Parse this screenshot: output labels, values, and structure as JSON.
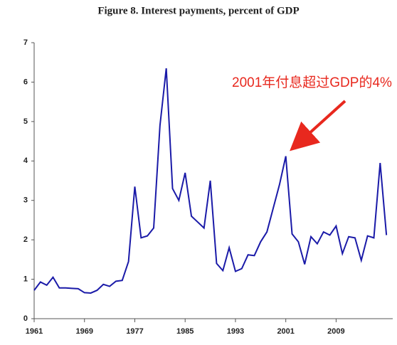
{
  "chart_data": {
    "type": "line",
    "title": "Figure 8. Interest payments, percent of GDP",
    "annotation": "2001年付息超过GDP的4%",
    "x": [
      1961,
      1962,
      1963,
      1964,
      1965,
      1966,
      1967,
      1968,
      1969,
      1970,
      1971,
      1972,
      1973,
      1974,
      1975,
      1976,
      1977,
      1978,
      1979,
      1980,
      1981,
      1982,
      1983,
      1984,
      1985,
      1986,
      1987,
      1988,
      1989,
      1990,
      1991,
      1992,
      1993,
      1994,
      1995,
      1996,
      1997,
      1998,
      1999,
      2000,
      2001,
      2002,
      2003,
      2004,
      2005,
      2006,
      2007,
      2008,
      2009,
      2010,
      2011,
      2012,
      2013,
      2014,
      2015,
      2016,
      2017
    ],
    "series": [
      {
        "color": "#1a1aa8",
        "values": [
          0.72,
          0.93,
          0.85,
          1.05,
          0.78,
          0.78,
          0.77,
          0.76,
          0.66,
          0.65,
          0.72,
          0.87,
          0.82,
          0.95,
          0.97,
          1.45,
          3.35,
          2.05,
          2.1,
          2.3,
          4.9,
          6.35,
          3.3,
          3.0,
          3.7,
          2.6,
          2.45,
          2.3,
          3.5,
          1.4,
          1.22,
          1.8,
          1.2,
          1.27,
          1.62,
          1.6,
          1.95,
          2.2,
          2.8,
          3.4,
          4.12,
          2.15,
          1.95,
          1.38,
          2.08,
          1.9,
          2.2,
          2.12,
          2.35,
          1.65,
          2.08,
          2.05,
          1.48,
          2.1,
          2.05,
          3.95,
          2.12
        ]
      }
    ],
    "xlim": [
      1961,
      2018
    ],
    "xticks": [
      1961,
      1969,
      1977,
      1985,
      1993,
      2001,
      2009
    ],
    "ylim": [
      0,
      7
    ],
    "yticks": [
      0,
      1,
      2,
      3,
      4,
      5,
      6,
      7
    ]
  }
}
